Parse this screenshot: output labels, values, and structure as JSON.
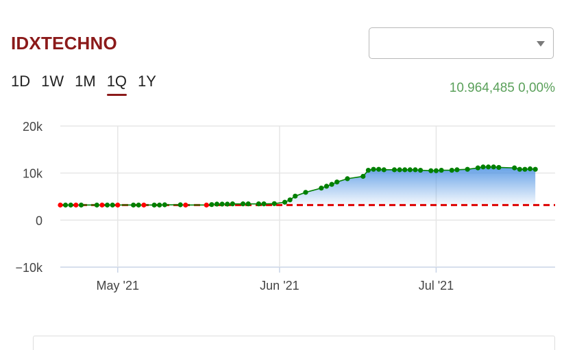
{
  "header": {
    "title": "IDXTECHNO",
    "dropdown_value": "",
    "quote": "10.964,485 0,00%"
  },
  "ranges": [
    {
      "label": "1D",
      "active": false
    },
    {
      "label": "1W",
      "active": false
    },
    {
      "label": "1M",
      "active": false
    },
    {
      "label": "1Q",
      "active": true
    },
    {
      "label": "1Y",
      "active": false
    }
  ],
  "colors": {
    "title": "#8b1a1a",
    "up": "#008000",
    "down": "#ff0000",
    "baseline": "#dd0000",
    "area": "#4a90e2",
    "quote": "#5aa05a"
  },
  "chart_data": {
    "type": "area",
    "baseline": 3200,
    "ylim": [
      -10000,
      20000
    ],
    "yticks": [
      -10000,
      0,
      10000,
      20000
    ],
    "ytick_labels": [
      "−10k",
      "0",
      "10k",
      "20k"
    ],
    "xlim": [
      "2021-04-20",
      "2021-07-23"
    ],
    "xticks": [
      "2021-05-01",
      "2021-06-01",
      "2021-07-01"
    ],
    "xtick_labels": [
      "May '21",
      "Jun '21",
      "Jul '21"
    ],
    "grid": true,
    "series": [
      {
        "x": [
          "2021-04-20",
          "2021-04-21",
          "2021-04-22",
          "2021-04-23",
          "2021-04-24",
          "2021-04-27",
          "2021-04-28",
          "2021-04-29",
          "2021-04-30",
          "2021-05-01",
          "2021-05-04",
          "2021-05-05",
          "2021-05-06",
          "2021-05-08",
          "2021-05-09",
          "2021-05-10",
          "2021-05-13",
          "2021-05-14",
          "2021-05-18",
          "2021-05-19",
          "2021-05-20",
          "2021-05-21",
          "2021-05-22",
          "2021-05-23",
          "2021-05-25",
          "2021-05-26",
          "2021-05-28",
          "2021-05-29",
          "2021-05-31",
          "2021-06-02",
          "2021-06-03",
          "2021-06-04",
          "2021-06-06",
          "2021-06-09",
          "2021-06-10",
          "2021-06-11",
          "2021-06-12",
          "2021-06-14",
          "2021-06-17",
          "2021-06-18",
          "2021-06-19",
          "2021-06-20",
          "2021-06-21",
          "2021-06-23",
          "2021-06-24",
          "2021-06-25",
          "2021-06-26",
          "2021-06-27",
          "2021-06-28",
          "2021-06-30",
          "2021-07-01",
          "2021-07-02",
          "2021-07-04",
          "2021-07-05",
          "2021-07-07",
          "2021-07-09",
          "2021-07-10",
          "2021-07-11",
          "2021-07-12",
          "2021-07-13",
          "2021-07-16",
          "2021-07-17",
          "2021-07-18",
          "2021-07-19",
          "2021-07-20"
        ],
        "y": [
          3200,
          3200,
          3200,
          3200,
          3200,
          3200,
          3200,
          3200,
          3200,
          3200,
          3200,
          3200,
          3200,
          3200,
          3200,
          3250,
          3250,
          3200,
          3200,
          3300,
          3400,
          3400,
          3400,
          3450,
          3450,
          3450,
          3450,
          3450,
          3500,
          3800,
          4300,
          5100,
          5900,
          6800,
          7200,
          7600,
          8100,
          8800,
          9300,
          10600,
          10800,
          10800,
          10700,
          10700,
          10700,
          10700,
          10700,
          10700,
          10600,
          10500,
          10500,
          10600,
          10600,
          10700,
          10800,
          11100,
          11300,
          11300,
          11300,
          11200,
          11100,
          10800,
          10800,
          10900,
          10800
        ]
      }
    ]
  }
}
